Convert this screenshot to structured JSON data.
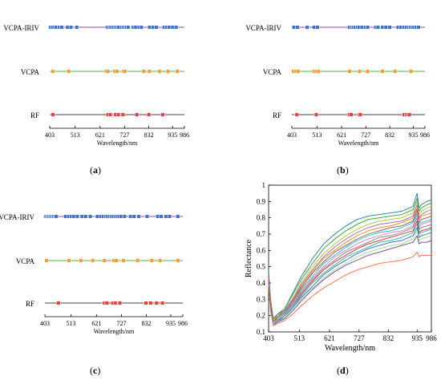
{
  "panels": [
    {
      "label": "a",
      "x_ticks": [
        403,
        513,
        621,
        727,
        832,
        935,
        986
      ],
      "x_label": "Wavelength/nm",
      "rows": [
        {
          "name": "VCPA-IRIV",
          "line_color": "#a040a0",
          "marker_color": "#4472c4",
          "points": [
            406,
            414,
            422,
            430,
            445,
            455,
            480,
            495,
            520,
            652,
            660,
            667,
            672,
            680,
            688,
            695,
            702,
            715,
            722,
            728,
            735,
            742,
            765,
            775,
            790,
            800,
            835,
            850,
            865,
            898,
            910,
            920,
            935,
            950
          ]
        },
        {
          "name": "VCPA",
          "line_color": "#4daf4a",
          "marker_color": "#f0a030",
          "points": [
            417,
            485,
            648,
            655,
            685,
            695,
            722,
            728,
            810,
            835,
            878,
            915,
            955
          ]
        },
        {
          "name": "RF",
          "line_color": "#404040",
          "marker_color": "#e8403a",
          "points": [
            417,
            655,
            665,
            688,
            700,
            720,
            780,
            832,
            892
          ]
        }
      ]
    },
    {
      "label": "b",
      "x_ticks": [
        403,
        513,
        621,
        727,
        832,
        935,
        986
      ],
      "x_label": "Wavelength/nm",
      "rows": [
        {
          "name": "VCPA-IRIV",
          "line_color": "#a040a0",
          "marker_color": "#4472c4",
          "points": [
            412,
            428,
            470,
            500,
            515,
            655,
            665,
            672,
            680,
            690,
            698,
            710,
            725,
            735,
            770,
            780,
            800,
            815,
            832,
            868,
            880,
            895,
            905,
            915,
            922,
            930,
            938,
            948,
            958
          ]
        },
        {
          "name": "VCPA",
          "line_color": "#4daf4a",
          "marker_color": "#f0a030",
          "points": [
            410,
            420,
            430,
            500,
            510,
            520,
            655,
            700,
            735,
            800,
            855,
            925
          ]
        },
        {
          "name": "RF",
          "line_color": "#404040",
          "marker_color": "#e8403a",
          "points": [
            425,
            510,
            655,
            663,
            698,
            703,
            895,
            905,
            912,
            918
          ]
        }
      ]
    },
    {
      "label": "c",
      "x_ticks": [
        403,
        513,
        621,
        727,
        832,
        935,
        986
      ],
      "x_label": "Wavelength/nm",
      "rows": [
        {
          "name": "VCPA-IRIV",
          "line_color": "#a040a0",
          "marker_color": "#4472c4",
          "points": [
            406,
            411,
            416,
            421,
            426,
            431,
            436,
            441,
            446,
            451,
            490,
            505,
            515,
            525,
            540,
            560,
            575,
            595,
            625,
            640,
            650,
            660,
            668,
            676,
            684,
            692,
            700,
            708,
            716,
            724,
            740,
            765,
            780,
            800,
            835,
            880,
            895,
            915,
            930,
            965
          ]
        },
        {
          "name": "VCPA",
          "line_color": "#4daf4a",
          "marker_color": "#f0a030",
          "points": [
            410,
            505,
            555,
            605,
            655,
            695,
            705,
            735,
            795,
            855,
            890,
            965
          ]
        },
        {
          "name": "RF",
          "line_color": "#404040",
          "marker_color": "#e8403a",
          "points": [
            460,
            655,
            665,
            690,
            700,
            720,
            830,
            850,
            875,
            900
          ]
        }
      ]
    }
  ],
  "spectra": {
    "label": "d",
    "ylabel": "Reflectance",
    "xlabel": "Wavelength/nm",
    "x_ticks": [
      403,
      513,
      621,
      727,
      832,
      935,
      986
    ],
    "y_ticks": [
      0.1,
      0.2,
      0.3,
      0.4,
      0.5,
      0.6,
      0.7,
      0.8,
      0.9,
      1
    ],
    "xlim": [
      403,
      986
    ],
    "ylim": [
      0.1,
      1.0
    ],
    "x": [
      403,
      410,
      420,
      435,
      460,
      490,
      520,
      560,
      600,
      640,
      680,
      720,
      760,
      800,
      840,
      880,
      920,
      935,
      942,
      950,
      970,
      986
    ],
    "series": [
      {
        "color": "#1f77b4",
        "values": [
          0.48,
          0.3,
          0.18,
          0.21,
          0.24,
          0.34,
          0.44,
          0.55,
          0.64,
          0.7,
          0.75,
          0.79,
          0.81,
          0.82,
          0.83,
          0.84,
          0.87,
          0.95,
          0.86,
          0.88,
          0.9,
          0.91
        ]
      },
      {
        "color": "#2ca02c",
        "values": [
          0.46,
          0.29,
          0.18,
          0.2,
          0.24,
          0.33,
          0.42,
          0.52,
          0.61,
          0.67,
          0.72,
          0.76,
          0.79,
          0.8,
          0.81,
          0.82,
          0.85,
          0.92,
          0.84,
          0.86,
          0.88,
          0.89
        ]
      },
      {
        "color": "#bcbd22",
        "values": [
          0.45,
          0.28,
          0.17,
          0.2,
          0.23,
          0.31,
          0.4,
          0.5,
          0.58,
          0.64,
          0.69,
          0.73,
          0.76,
          0.78,
          0.79,
          0.8,
          0.83,
          0.9,
          0.82,
          0.84,
          0.86,
          0.87
        ]
      },
      {
        "color": "#9467bd",
        "values": [
          0.45,
          0.28,
          0.17,
          0.19,
          0.23,
          0.3,
          0.39,
          0.48,
          0.56,
          0.62,
          0.67,
          0.71,
          0.74,
          0.76,
          0.77,
          0.78,
          0.81,
          0.88,
          0.8,
          0.82,
          0.84,
          0.85
        ]
      },
      {
        "color": "#ff7f0e",
        "values": [
          0.44,
          0.27,
          0.17,
          0.19,
          0.22,
          0.29,
          0.38,
          0.47,
          0.55,
          0.6,
          0.65,
          0.69,
          0.72,
          0.74,
          0.75,
          0.77,
          0.8,
          0.86,
          0.79,
          0.81,
          0.82,
          0.83
        ]
      },
      {
        "color": "#8c564b",
        "values": [
          0.44,
          0.27,
          0.16,
          0.19,
          0.22,
          0.29,
          0.37,
          0.46,
          0.53,
          0.59,
          0.63,
          0.67,
          0.7,
          0.72,
          0.74,
          0.75,
          0.78,
          0.85,
          0.77,
          0.79,
          0.8,
          0.81
        ]
      },
      {
        "color": "#17becf",
        "values": [
          0.43,
          0.27,
          0.16,
          0.18,
          0.21,
          0.28,
          0.36,
          0.44,
          0.52,
          0.57,
          0.62,
          0.66,
          0.69,
          0.71,
          0.72,
          0.74,
          0.77,
          0.83,
          0.76,
          0.77,
          0.78,
          0.79
        ]
      },
      {
        "color": "#e377c2",
        "values": [
          0.43,
          0.26,
          0.16,
          0.18,
          0.21,
          0.28,
          0.35,
          0.43,
          0.5,
          0.56,
          0.6,
          0.64,
          0.67,
          0.69,
          0.71,
          0.72,
          0.75,
          0.82,
          0.74,
          0.76,
          0.77,
          0.78
        ]
      },
      {
        "color": "#7f7f7f",
        "values": [
          0.42,
          0.26,
          0.16,
          0.18,
          0.21,
          0.27,
          0.34,
          0.42,
          0.49,
          0.54,
          0.59,
          0.62,
          0.65,
          0.68,
          0.69,
          0.71,
          0.74,
          0.8,
          0.73,
          0.74,
          0.75,
          0.76
        ]
      },
      {
        "color": "#d62728",
        "values": [
          0.42,
          0.26,
          0.15,
          0.17,
          0.2,
          0.26,
          0.33,
          0.41,
          0.48,
          0.53,
          0.57,
          0.61,
          0.64,
          0.66,
          0.68,
          0.7,
          0.72,
          0.78,
          0.71,
          0.72,
          0.73,
          0.74
        ]
      },
      {
        "color": "#1fb4a8",
        "values": [
          0.41,
          0.25,
          0.15,
          0.17,
          0.2,
          0.26,
          0.32,
          0.4,
          0.46,
          0.51,
          0.56,
          0.59,
          0.62,
          0.65,
          0.66,
          0.68,
          0.71,
          0.76,
          0.7,
          0.71,
          0.72,
          0.73
        ]
      },
      {
        "color": "#3a5fcd",
        "values": [
          0.41,
          0.25,
          0.15,
          0.17,
          0.19,
          0.25,
          0.31,
          0.38,
          0.45,
          0.5,
          0.54,
          0.58,
          0.61,
          0.63,
          0.65,
          0.66,
          0.69,
          0.74,
          0.68,
          0.69,
          0.7,
          0.71
        ]
      },
      {
        "color": "#98df8a",
        "values": [
          0.4,
          0.24,
          0.15,
          0.16,
          0.19,
          0.24,
          0.3,
          0.37,
          0.43,
          0.48,
          0.52,
          0.56,
          0.59,
          0.61,
          0.63,
          0.64,
          0.67,
          0.72,
          0.66,
          0.67,
          0.68,
          0.69
        ]
      },
      {
        "color": "#6a3d9a",
        "values": [
          0.4,
          0.24,
          0.14,
          0.16,
          0.18,
          0.23,
          0.29,
          0.36,
          0.42,
          0.47,
          0.51,
          0.54,
          0.57,
          0.59,
          0.61,
          0.63,
          0.65,
          0.69,
          0.64,
          0.65,
          0.65,
          0.66
        ]
      },
      {
        "color": "#ff6a3d",
        "values": [
          0.39,
          0.23,
          0.14,
          0.15,
          0.17,
          0.21,
          0.26,
          0.32,
          0.37,
          0.41,
          0.45,
          0.48,
          0.5,
          0.52,
          0.53,
          0.54,
          0.56,
          0.59,
          0.56,
          0.57,
          0.57,
          0.57
        ]
      }
    ]
  }
}
